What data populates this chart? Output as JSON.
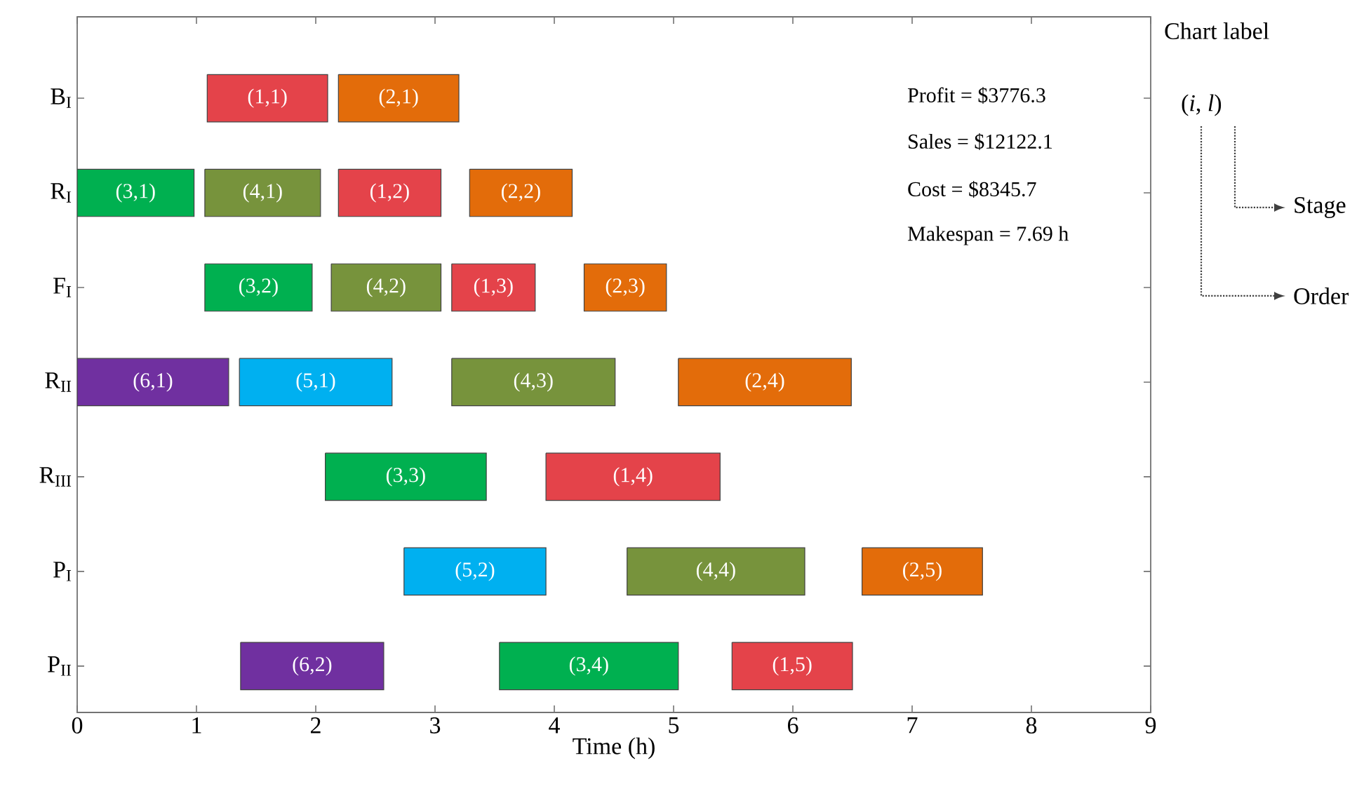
{
  "chart_data": {
    "type": "bar",
    "orientation": "horizontal",
    "xlabel": "Time (h)",
    "categories": [
      "B$_{I}$",
      "R$_{I}$",
      "F$_{I}$",
      "R$_{II}$",
      "R$_{III}$",
      "P$_{I}$",
      "P$_{II}$"
    ],
    "xlim": [
      0,
      9
    ],
    "xticks": [
      0,
      1,
      2,
      3,
      4,
      5,
      6,
      7,
      8,
      9
    ],
    "grid": false,
    "series": [
      {
        "color": "#e4434a",
        "base": [
          1.09,
          2.19,
          3.14,
          null,
          3.93,
          null,
          5.49
        ],
        "values": [
          1.01,
          0.86,
          0.7,
          null,
          1.46,
          null,
          1.01
        ]
      },
      {
        "color": "#e36c0a",
        "base": [
          2.19,
          3.29,
          4.25,
          5.04,
          null,
          6.58,
          null
        ],
        "values": [
          1.01,
          0.86,
          0.69,
          1.45,
          null,
          1.01,
          null
        ]
      },
      {
        "color": "#00b050",
        "base": [
          null,
          0,
          1.07,
          null,
          2.08,
          null,
          3.54
        ],
        "values": [
          null,
          0.98,
          0.9,
          null,
          1.35,
          null,
          1.5
        ]
      },
      {
        "color": "#77933c",
        "base": [
          null,
          1.07,
          2.13,
          3.14,
          null,
          4.61,
          null
        ],
        "values": [
          null,
          0.97,
          0.92,
          1.37,
          null,
          1.49,
          null
        ]
      },
      {
        "color": "#00b0f0",
        "base": [
          null,
          null,
          null,
          1.36,
          null,
          2.74,
          null
        ],
        "values": [
          null,
          null,
          null,
          1.28,
          null,
          1.19,
          null
        ]
      },
      {
        "color": "#7030a0",
        "base": [
          null,
          null,
          null,
          0,
          null,
          null,
          1.37
        ],
        "values": [
          null,
          null,
          null,
          1.27,
          null,
          null,
          1.2
        ]
      }
    ],
    "annotations": [
      "Profit = $3776.3",
      "Sales = $12122.1",
      "Cost = $8345.7",
      "Makespan = 7.69 h",
      "Chart label",
      "(*i*, *l*)",
      "Stage",
      "Order",
      "(1,1)",
      "(2,1)",
      "(3,1)",
      "(4,1)",
      "(1,2)",
      "(2,2)",
      "(3,2)",
      "(4,2)",
      "(1,3)",
      "(2,3)",
      "(6,1)",
      "(5,1)",
      "(4,3)",
      "(2,4)",
      "(3,3)",
      "(1,4)",
      "(5,2)",
      "(4,4)",
      "(2,5)",
      "(6,2)",
      "(3,4)",
      "(1,5)"
    ]
  }
}
